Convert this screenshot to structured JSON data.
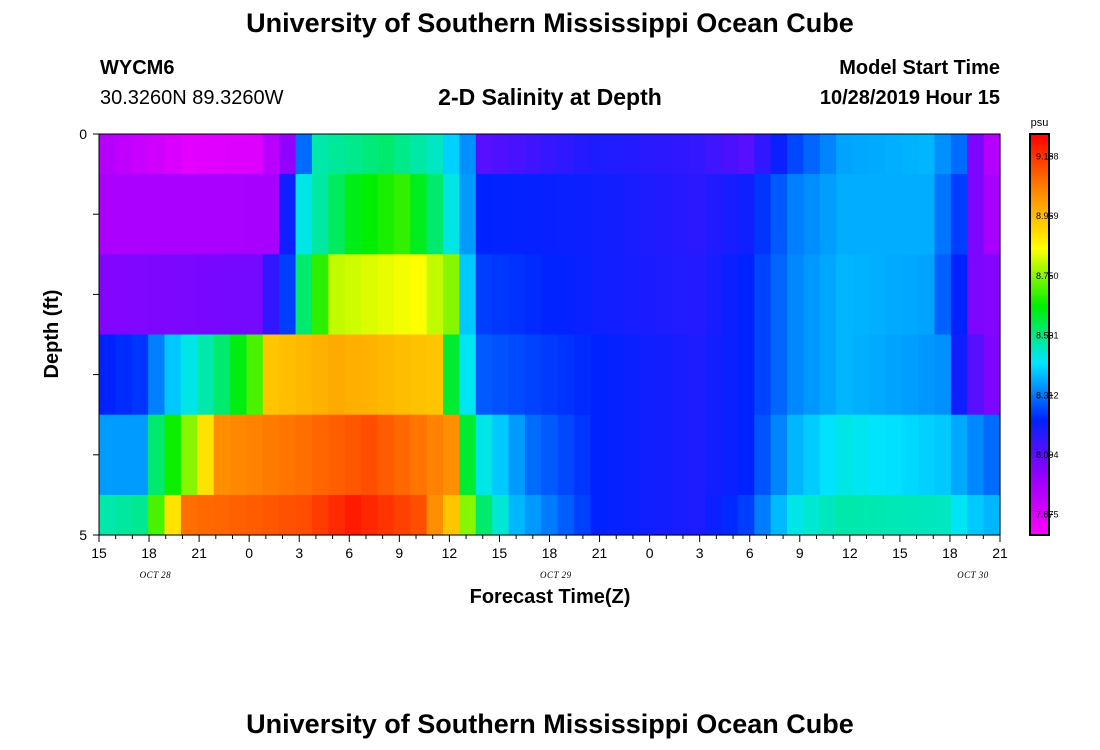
{
  "header": {
    "title_top": "University of Southern Mississippi Ocean Cube",
    "title_bottom": "University of Southern Mississippi Ocean Cube",
    "station_id": "WYCM6",
    "station_coords": "30.3260N 89.3260W",
    "model_start_label": "Model Start Time",
    "model_start_value": "10/28/2019 Hour 15"
  },
  "colors": {
    "ramp": [
      "#ff00ff",
      "#9900ff",
      "#0022ff",
      "#00e5ff",
      "#00ee00",
      "#ffff00",
      "#ff8800",
      "#ff0000"
    ]
  },
  "chart_data": {
    "type": "heatmap",
    "title": "2-D Salinity at Depth",
    "xlabel": "Forecast Time(Z)",
    "ylabel": "Depth (ft)",
    "ylim": [
      0,
      5
    ],
    "y_tick_labels": [
      "0",
      "5"
    ],
    "x_tick_labels": [
      "15",
      "18",
      "21",
      "0",
      "3",
      "6",
      "9",
      "12",
      "15",
      "18",
      "21",
      "0",
      "3",
      "6",
      "9",
      "12",
      "15",
      "18",
      "21"
    ],
    "date_labels": [
      "OCT 28",
      "OCT 29",
      "OCT 30"
    ],
    "colorbar": {
      "unit": "psu",
      "tick_labels": [
        "9.188",
        "8.969",
        "8.750",
        "8.531",
        "8.312",
        "8.094",
        "7.875"
      ],
      "range": [
        7.8,
        9.27
      ]
    },
    "hours": [
      15,
      16,
      17,
      18,
      19,
      20,
      21,
      22,
      23,
      24,
      25,
      26,
      27,
      28,
      29,
      30,
      31,
      32,
      33,
      34,
      35,
      36,
      37,
      38,
      39,
      40,
      41,
      42,
      43,
      44,
      45,
      46,
      47,
      48,
      49,
      50,
      51,
      52,
      53,
      54,
      55,
      56,
      57,
      58,
      59,
      60,
      61,
      62,
      63,
      64,
      65,
      66,
      67,
      68,
      69
    ],
    "depth_layers": [
      {
        "depth_range": [
          0.0,
          0.5
        ],
        "knots": [
          [
            15,
            7.95
          ],
          [
            20,
            7.86
          ],
          [
            24,
            7.87
          ],
          [
            26,
            8.02
          ],
          [
            27,
            8.3
          ],
          [
            28,
            8.5
          ],
          [
            32,
            8.55
          ],
          [
            35,
            8.48
          ],
          [
            37,
            8.34
          ],
          [
            38,
            8.1
          ],
          [
            45,
            8.18
          ],
          [
            51,
            8.15
          ],
          [
            54,
            8.1
          ],
          [
            57,
            8.26
          ],
          [
            60,
            8.36
          ],
          [
            65,
            8.38
          ],
          [
            67,
            8.3
          ],
          [
            68,
            8.05
          ],
          [
            69,
            7.95
          ]
        ]
      },
      {
        "depth_range": [
          0.5,
          1.5
        ],
        "knots": [
          [
            15,
            7.97
          ],
          [
            25,
            7.98
          ],
          [
            26,
            8.2
          ],
          [
            27,
            8.45
          ],
          [
            30,
            8.62
          ],
          [
            33,
            8.68
          ],
          [
            35,
            8.55
          ],
          [
            37,
            8.35
          ],
          [
            38,
            8.22
          ],
          [
            45,
            8.2
          ],
          [
            51,
            8.16
          ],
          [
            54,
            8.2
          ],
          [
            57,
            8.32
          ],
          [
            60,
            8.37
          ],
          [
            65,
            8.37
          ],
          [
            67,
            8.25
          ],
          [
            68,
            8.05
          ],
          [
            69,
            7.98
          ]
        ]
      },
      {
        "depth_range": [
          1.5,
          2.5
        ],
        "knots": [
          [
            15,
            8.04
          ],
          [
            24,
            8.06
          ],
          [
            26,
            8.25
          ],
          [
            27,
            8.55
          ],
          [
            29,
            8.8
          ],
          [
            34,
            8.85
          ],
          [
            36,
            8.75
          ],
          [
            37,
            8.4
          ],
          [
            38,
            8.25
          ],
          [
            45,
            8.2
          ],
          [
            51,
            8.17
          ],
          [
            54,
            8.22
          ],
          [
            57,
            8.33
          ],
          [
            60,
            8.38
          ],
          [
            65,
            8.36
          ],
          [
            67,
            8.22
          ],
          [
            68,
            8.05
          ],
          [
            69,
            8.04
          ]
        ]
      },
      {
        "depth_range": [
          2.5,
          3.5
        ],
        "knots": [
          [
            15,
            8.22
          ],
          [
            17,
            8.24
          ],
          [
            19,
            8.4
          ],
          [
            22,
            8.55
          ],
          [
            24,
            8.7
          ],
          [
            25,
            8.95
          ],
          [
            29,
            9.0
          ],
          [
            35,
            8.95
          ],
          [
            36,
            8.6
          ],
          [
            38,
            8.28
          ],
          [
            45,
            8.22
          ],
          [
            51,
            8.18
          ],
          [
            54,
            8.22
          ],
          [
            57,
            8.33
          ],
          [
            60,
            8.38
          ],
          [
            66,
            8.34
          ],
          [
            67,
            8.2
          ],
          [
            68,
            8.1
          ],
          [
            69,
            8.05
          ]
        ]
      },
      {
        "depth_range": [
          3.5,
          4.5
        ],
        "knots": [
          [
            15,
            8.35
          ],
          [
            17,
            8.35
          ],
          [
            18,
            8.55
          ],
          [
            20,
            8.75
          ],
          [
            22,
            9.05
          ],
          [
            27,
            9.1
          ],
          [
            31,
            9.15
          ],
          [
            36,
            9.05
          ],
          [
            37,
            8.6
          ],
          [
            38,
            8.45
          ],
          [
            41,
            8.3
          ],
          [
            45,
            8.22
          ],
          [
            51,
            8.18
          ],
          [
            54,
            8.22
          ],
          [
            57,
            8.38
          ],
          [
            60,
            8.45
          ],
          [
            66,
            8.4
          ],
          [
            68,
            8.33
          ],
          [
            69,
            8.3
          ]
        ]
      },
      {
        "depth_range": [
          4.5,
          5.0
        ],
        "knots": [
          [
            15,
            8.5
          ],
          [
            17,
            8.52
          ],
          [
            18,
            8.7
          ],
          [
            20,
            9.1
          ],
          [
            27,
            9.15
          ],
          [
            30,
            9.23
          ],
          [
            34,
            9.15
          ],
          [
            36,
            8.95
          ],
          [
            38,
            8.55
          ],
          [
            40,
            8.38
          ],
          [
            45,
            8.22
          ],
          [
            51,
            8.18
          ],
          [
            54,
            8.25
          ],
          [
            57,
            8.45
          ],
          [
            60,
            8.5
          ],
          [
            66,
            8.48
          ],
          [
            68,
            8.4
          ],
          [
            69,
            8.38
          ]
        ]
      }
    ]
  }
}
